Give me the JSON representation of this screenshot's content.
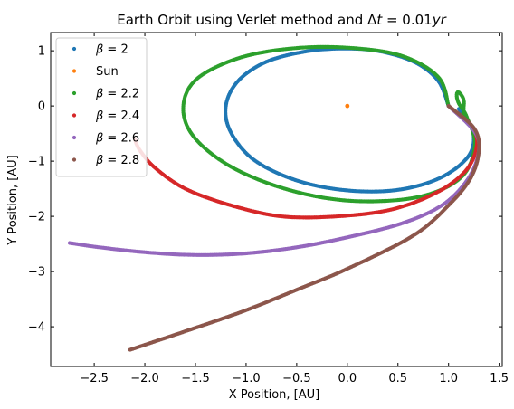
{
  "chart_data": {
    "type": "scatter",
    "title": "Earth Orbit using Verlet method and Δt = 0.01yr",
    "title_parts": {
      "prefix": "Earth Orbit using Verlet method and ",
      "delta": "Δ",
      "t": "t",
      "eq": " = 0.01",
      "unit": "yr"
    },
    "xlabel": "X Position, [AU]",
    "ylabel": "Y Position, [AU]",
    "xlim": [
      -2.93,
      1.53
    ],
    "ylim": [
      -4.72,
      1.33
    ],
    "xticks": [
      -2.5,
      -2.0,
      -1.5,
      -1.0,
      -0.5,
      0.0,
      0.5,
      1.0,
      1.5
    ],
    "xtick_labels": [
      "−2.5",
      "−2.0",
      "−1.5",
      "−1.0",
      "−0.5",
      "0.0",
      "0.5",
      "1.0",
      "1.5"
    ],
    "yticks": [
      -4,
      -3,
      -2,
      -1,
      0,
      1
    ],
    "ytick_labels": [
      "−4",
      "−3",
      "−2",
      "−1",
      "0",
      "1"
    ],
    "grid": false,
    "legend_position": "top-left",
    "series": [
      {
        "name": "β = 2",
        "legend_prefix": "β",
        "legend_suffix": " = 2",
        "color": "#1f77b4",
        "points": [
          [
            1.0,
            0.0
          ],
          [
            0.9,
            0.45
          ],
          [
            0.68,
            0.78
          ],
          [
            0.35,
            0.98
          ],
          [
            0.0,
            1.04
          ],
          [
            -0.4,
            0.99
          ],
          [
            -0.8,
            0.8
          ],
          [
            -1.08,
            0.45
          ],
          [
            -1.2,
            0.0
          ],
          [
            -1.15,
            -0.48
          ],
          [
            -0.92,
            -0.98
          ],
          [
            -0.5,
            -1.35
          ],
          [
            0.0,
            -1.53
          ],
          [
            0.5,
            -1.52
          ],
          [
            0.92,
            -1.3
          ],
          [
            1.2,
            -0.9
          ],
          [
            1.24,
            -0.45
          ],
          [
            1.1,
            -0.05
          ]
        ]
      },
      {
        "name": "Sun",
        "color": "#ff7f0e",
        "points": [
          [
            0.0,
            0.0
          ]
        ]
      },
      {
        "name": "β = 2.2",
        "legend_prefix": "β",
        "legend_suffix": " = 2.2",
        "color": "#2ca02c",
        "points": [
          [
            1.0,
            0.0
          ],
          [
            0.9,
            0.52
          ],
          [
            0.55,
            0.9
          ],
          [
            0.05,
            1.05
          ],
          [
            -0.5,
            1.05
          ],
          [
            -1.05,
            0.88
          ],
          [
            -1.48,
            0.5
          ],
          [
            -1.62,
            0.0
          ],
          [
            -1.52,
            -0.55
          ],
          [
            -1.15,
            -1.1
          ],
          [
            -0.58,
            -1.52
          ],
          [
            0.05,
            -1.72
          ],
          [
            0.7,
            -1.65
          ],
          [
            1.12,
            -1.3
          ],
          [
            1.26,
            -0.72
          ],
          [
            1.18,
            -0.2
          ],
          [
            1.1,
            0.05
          ],
          [
            1.08,
            0.2
          ],
          [
            1.1,
            0.25
          ],
          [
            1.15,
            0.1
          ],
          [
            1.14,
            -0.18
          ]
        ]
      },
      {
        "name": "β = 2.4",
        "legend_prefix": "β",
        "legend_suffix": " = 2.4",
        "color": "#d62728",
        "points": [
          [
            1.0,
            0.0
          ],
          [
            1.22,
            -0.35
          ],
          [
            1.28,
            -0.7
          ],
          [
            1.18,
            -1.15
          ],
          [
            0.9,
            -1.55
          ],
          [
            0.45,
            -1.87
          ],
          [
            -0.1,
            -2.0
          ],
          [
            -0.65,
            -2.0
          ],
          [
            -1.15,
            -1.8
          ],
          [
            -1.6,
            -1.5
          ],
          [
            -1.9,
            -1.12
          ],
          [
            -2.05,
            -0.8
          ],
          [
            -2.1,
            -0.6
          ]
        ]
      },
      {
        "name": "β = 2.6",
        "legend_prefix": "β",
        "legend_suffix": " = 2.6",
        "color": "#9467bd",
        "points": [
          [
            1.0,
            0.0
          ],
          [
            1.25,
            -0.45
          ],
          [
            1.3,
            -0.8
          ],
          [
            1.2,
            -1.3
          ],
          [
            0.95,
            -1.78
          ],
          [
            0.55,
            -2.12
          ],
          [
            0.0,
            -2.38
          ],
          [
            -0.5,
            -2.56
          ],
          [
            -1.0,
            -2.67
          ],
          [
            -1.5,
            -2.7
          ],
          [
            -2.0,
            -2.65
          ],
          [
            -2.45,
            -2.56
          ],
          [
            -2.75,
            -2.48
          ]
        ]
      },
      {
        "name": "β = 2.8",
        "legend_prefix": "β",
        "legend_suffix": " = 2.8",
        "color": "#8c564b",
        "points": [
          [
            1.0,
            0.0
          ],
          [
            1.25,
            -0.4
          ],
          [
            1.3,
            -0.8
          ],
          [
            1.22,
            -1.3
          ],
          [
            1.0,
            -1.8
          ],
          [
            0.65,
            -2.35
          ],
          [
            0.0,
            -2.95
          ],
          [
            -0.5,
            -3.33
          ],
          [
            -1.0,
            -3.7
          ],
          [
            -1.5,
            -4.02
          ],
          [
            -2.15,
            -4.42
          ]
        ]
      }
    ]
  }
}
